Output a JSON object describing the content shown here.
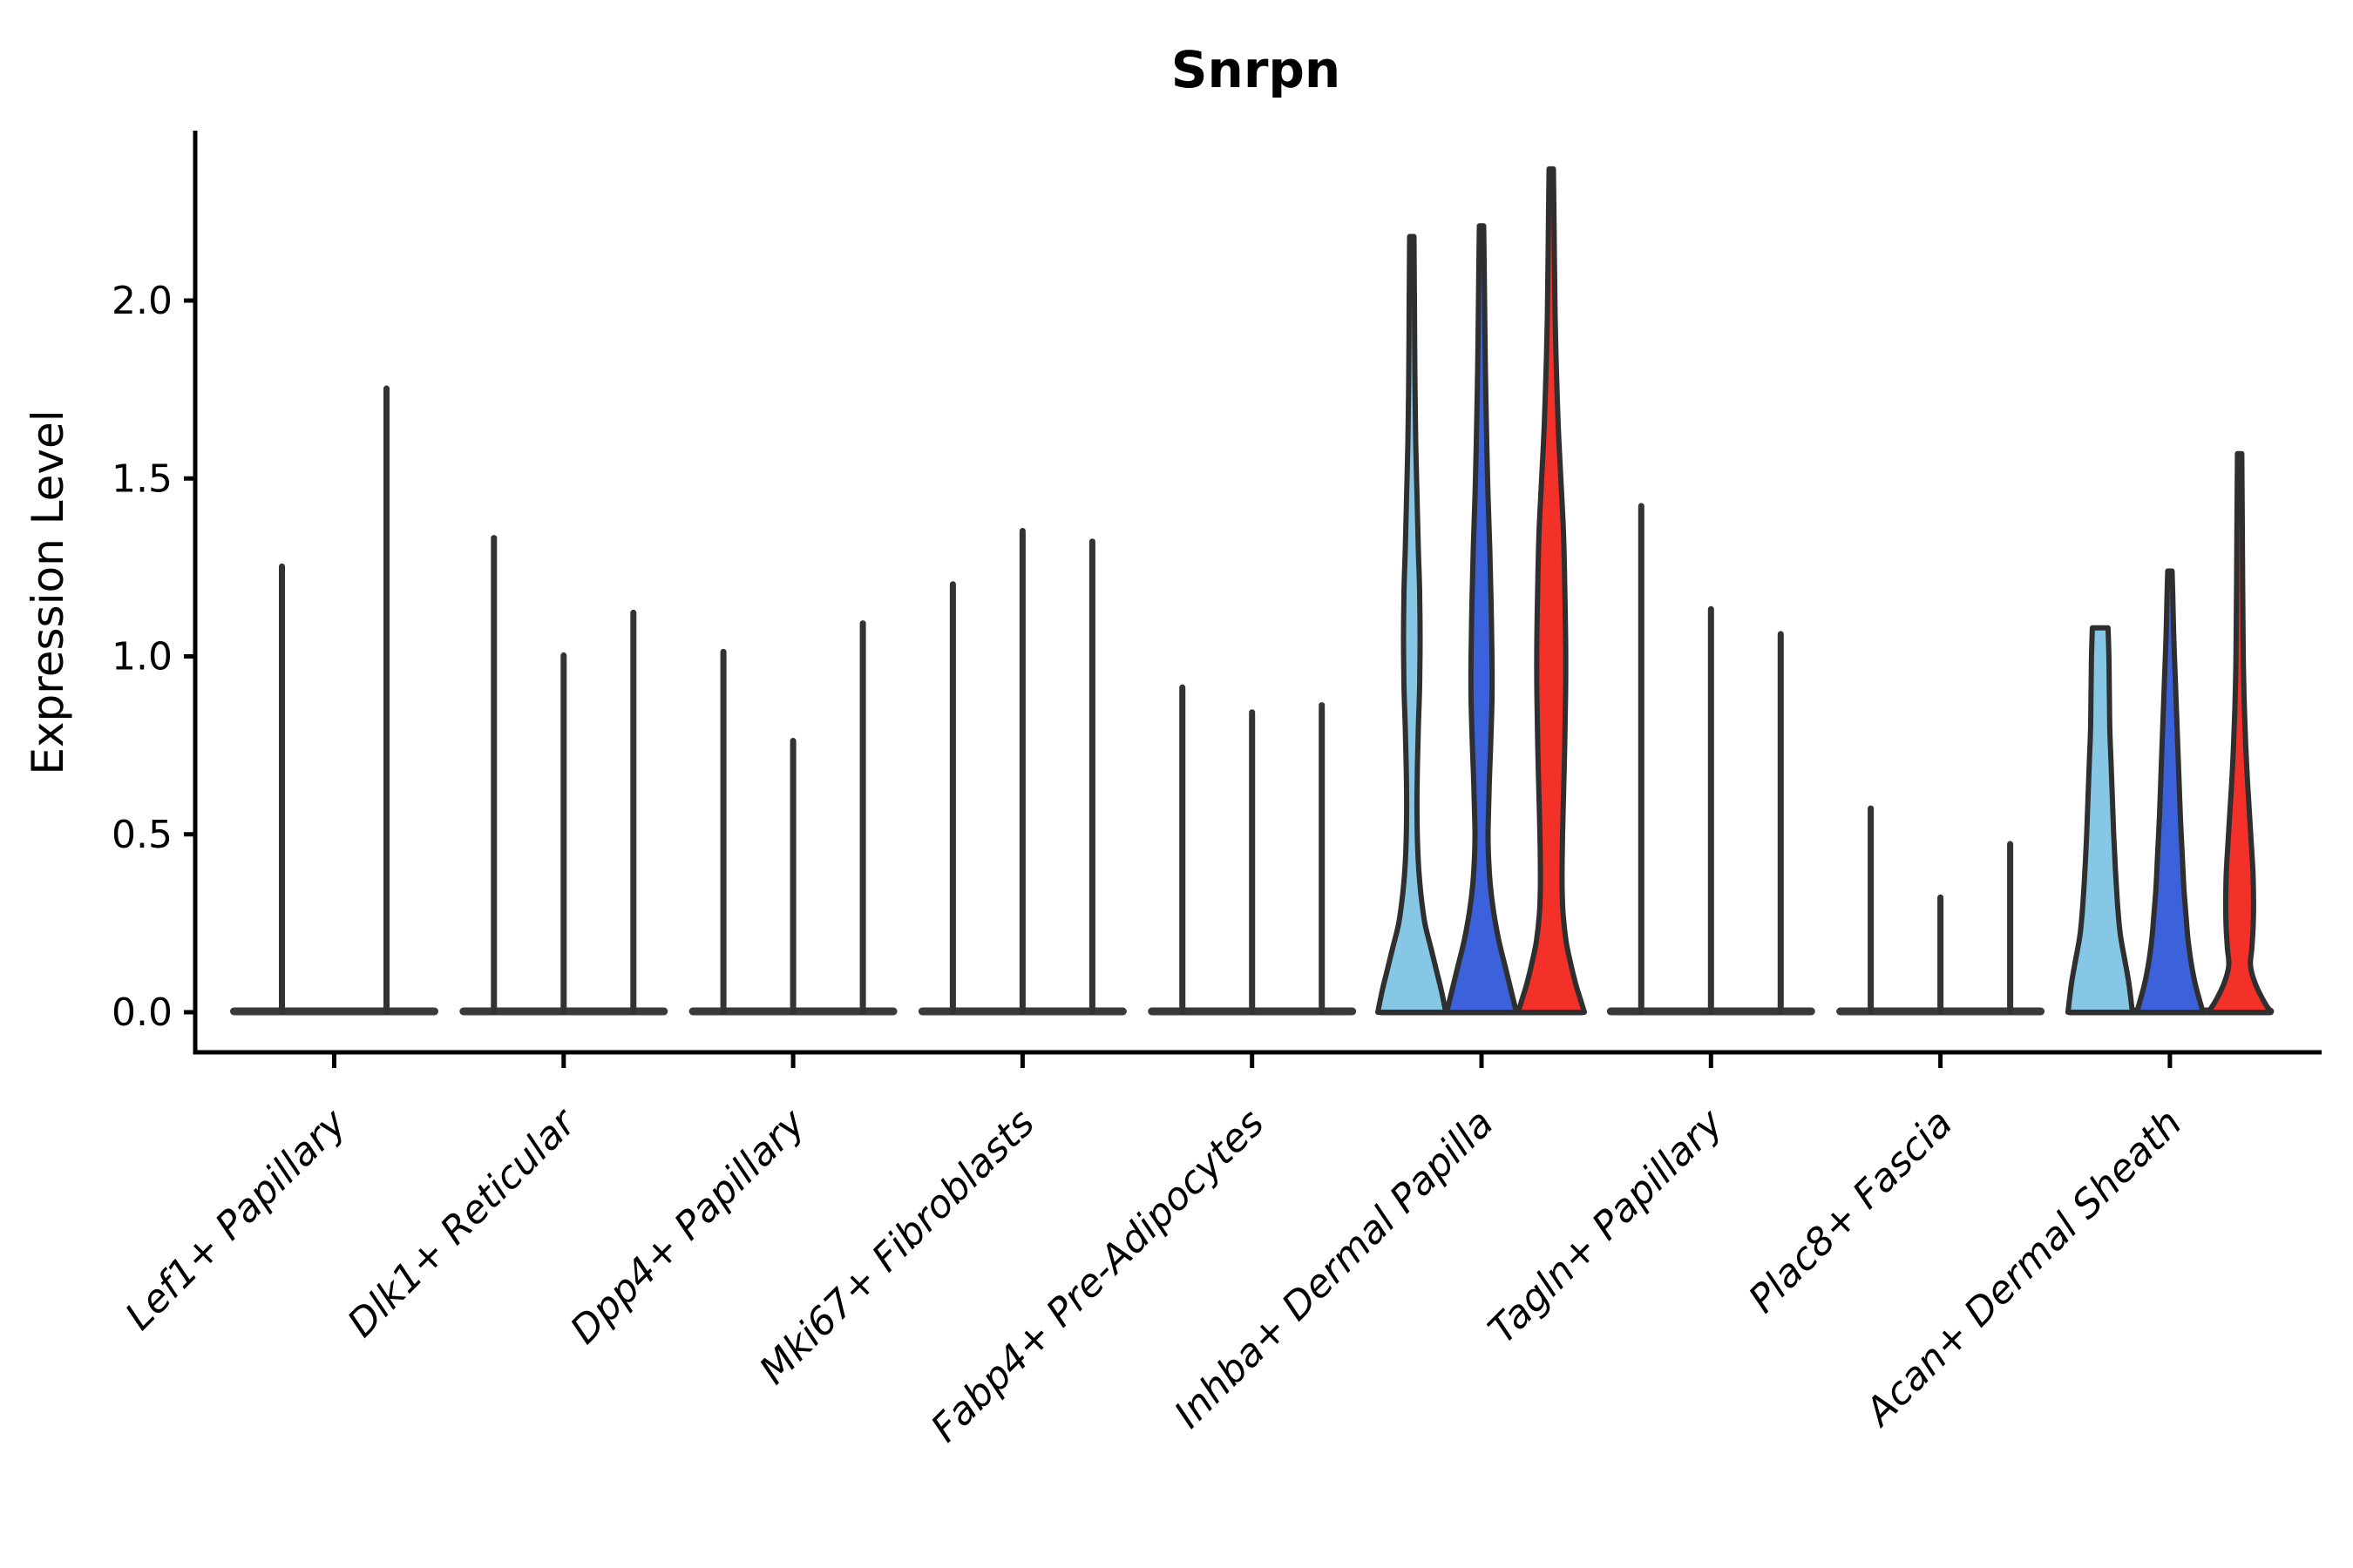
{
  "chart_data": {
    "type": "violin",
    "title": "Snrpn",
    "ylabel": "Expression Level",
    "xlabel": "",
    "ylim": [
      0,
      2.47
    ],
    "yticks": [
      {
        "value": 0.0,
        "label": "0.0"
      },
      {
        "value": 0.5,
        "label": "0.5"
      },
      {
        "value": 1.0,
        "label": "1.0"
      },
      {
        "value": 1.5,
        "label": "1.5"
      },
      {
        "value": 2.0,
        "label": "2.0"
      }
    ],
    "grid": false,
    "legend_position": "none",
    "colors": {
      "split_fills": [
        "#87C7E6",
        "#3B62DA",
        "#F33128"
      ],
      "outline": "#2F2F2F",
      "spike": "#333333",
      "zero_strip": "#3A3A3A"
    },
    "categories": [
      "Lef1+ Papillary",
      "Dlk1+ Reticular",
      "Dpp4+ Papillary",
      "Mki67+ Fibroblasts",
      "Fabp4+ Pre-Adipocytes",
      "Inhba+ Dermal Papilla",
      "Tagln+ Papillary",
      "Plac8+ Fascia",
      "Acan+ Dermal Sheath"
    ],
    "groups": [
      {
        "label": "Lef1+ Papillary",
        "violins": [
          {
            "kind": "spike",
            "max": 1.26
          },
          {
            "kind": "spike",
            "max": 1.76
          }
        ]
      },
      {
        "label": "Dlk1+ Reticular",
        "violins": [
          {
            "kind": "spike",
            "max": 1.34
          },
          {
            "kind": "spike",
            "max": 1.01
          },
          {
            "kind": "spike",
            "max": 1.13
          }
        ]
      },
      {
        "label": "Dpp4+ Papillary",
        "violins": [
          {
            "kind": "spike",
            "max": 1.02
          },
          {
            "kind": "spike",
            "max": 0.77
          },
          {
            "kind": "spike",
            "max": 1.1
          }
        ]
      },
      {
        "label": "Mki67+ Fibroblasts",
        "violins": [
          {
            "kind": "spike",
            "max": 1.21
          },
          {
            "kind": "spike",
            "max": 1.36
          },
          {
            "kind": "spike",
            "max": 1.33
          }
        ]
      },
      {
        "label": "Fabp4+ Pre-Adipocytes",
        "violins": [
          {
            "kind": "spike",
            "max": 0.92
          },
          {
            "kind": "spike",
            "max": 0.85
          },
          {
            "kind": "spike",
            "max": 0.87
          }
        ]
      },
      {
        "label": "Inhba+ Dermal Papilla",
        "violins": [
          {
            "kind": "violin",
            "max": 2.18,
            "fill_index": 0,
            "profile": [
              [
                2.18,
                2.5
              ],
              [
                2.0,
                3
              ],
              [
                1.8,
                3.5
              ],
              [
                1.6,
                4.5
              ],
              [
                1.45,
                6
              ],
              [
                1.3,
                7.5
              ],
              [
                1.18,
                9
              ],
              [
                1.05,
                9.5
              ],
              [
                0.92,
                9
              ],
              [
                0.8,
                7.5
              ],
              [
                0.7,
                6.5
              ],
              [
                0.62,
                6
              ],
              [
                0.55,
                6
              ],
              [
                0.48,
                6.5
              ],
              [
                0.4,
                8
              ],
              [
                0.32,
                11
              ],
              [
                0.25,
                15
              ],
              [
                0.18,
                22
              ],
              [
                0.12,
                28
              ],
              [
                0.06,
                34
              ],
              [
                0,
                39
              ]
            ]
          },
          {
            "kind": "violin",
            "max": 2.21,
            "fill_index": 1,
            "profile": [
              [
                2.21,
                2.5
              ],
              [
                2.0,
                3.5
              ],
              [
                1.8,
                4.5
              ],
              [
                1.6,
                6
              ],
              [
                1.45,
                7.5
              ],
              [
                1.3,
                9.5
              ],
              [
                1.15,
                11
              ],
              [
                1.0,
                12
              ],
              [
                0.88,
                12
              ],
              [
                0.75,
                10.5
              ],
              [
                0.65,
                9
              ],
              [
                0.56,
                8
              ],
              [
                0.5,
                7.5
              ],
              [
                0.44,
                8
              ],
              [
                0.36,
                10
              ],
              [
                0.28,
                14
              ],
              [
                0.2,
                20
              ],
              [
                0.13,
                27
              ],
              [
                0.07,
                33
              ],
              [
                0,
                40
              ]
            ]
          },
          {
            "kind": "violin",
            "max": 2.37,
            "fill_index": 2,
            "profile": [
              [
                2.37,
                2.5
              ],
              [
                2.15,
                3.5
              ],
              [
                1.95,
                4.5
              ],
              [
                1.8,
                6
              ],
              [
                1.65,
                8
              ],
              [
                1.5,
                11
              ],
              [
                1.35,
                14
              ],
              [
                1.2,
                15.5
              ],
              [
                1.05,
                16.5
              ],
              [
                0.9,
                16.5
              ],
              [
                0.75,
                15.5
              ],
              [
                0.6,
                14
              ],
              [
                0.5,
                13
              ],
              [
                0.42,
                12.5
              ],
              [
                0.35,
                12.5
              ],
              [
                0.28,
                13.5
              ],
              [
                0.2,
                17
              ],
              [
                0.14,
                22
              ],
              [
                0.08,
                28
              ],
              [
                0.04,
                33
              ],
              [
                0,
                38
              ]
            ]
          }
        ]
      },
      {
        "label": "Tagln+ Papillary",
        "violins": [
          {
            "kind": "spike",
            "max": 1.43
          },
          {
            "kind": "spike",
            "max": 1.14
          },
          {
            "kind": "spike",
            "max": 1.07
          }
        ]
      },
      {
        "label": "Plac8+ Fascia",
        "violins": [
          {
            "kind": "spike",
            "max": 0.58
          },
          {
            "kind": "spike",
            "max": 0.33
          },
          {
            "kind": "spike",
            "max": 0.48
          }
        ]
      },
      {
        "label": "Acan+ Dermal Sheath",
        "violins": [
          {
            "kind": "violin",
            "max": 1.08,
            "fill_index": 0,
            "profile": [
              [
                1.08,
                9
              ],
              [
                1.0,
                10
              ],
              [
                0.9,
                10.5
              ],
              [
                0.8,
                11
              ],
              [
                0.7,
                12.5
              ],
              [
                0.6,
                14
              ],
              [
                0.5,
                15.5
              ],
              [
                0.4,
                17.5
              ],
              [
                0.3,
                20
              ],
              [
                0.22,
                23
              ],
              [
                0.15,
                28
              ],
              [
                0.08,
                33
              ],
              [
                0,
                37
              ]
            ]
          },
          {
            "kind": "violin",
            "max": 1.24,
            "fill_index": 1,
            "profile": [
              [
                1.24,
                2.5
              ],
              [
                1.15,
                3.5
              ],
              [
                1.05,
                4.5
              ],
              [
                0.95,
                6
              ],
              [
                0.85,
                7.5
              ],
              [
                0.75,
                9
              ],
              [
                0.65,
                10.5
              ],
              [
                0.55,
                12
              ],
              [
                0.45,
                14
              ],
              [
                0.35,
                16
              ],
              [
                0.27,
                18.5
              ],
              [
                0.2,
                21
              ],
              [
                0.13,
                25
              ],
              [
                0.07,
                30
              ],
              [
                0,
                38
              ]
            ]
          },
          {
            "kind": "violin",
            "max": 1.57,
            "fill_index": 2,
            "profile": [
              [
                1.57,
                2.5
              ],
              [
                1.4,
                3
              ],
              [
                1.2,
                3.5
              ],
              [
                1.05,
                4
              ],
              [
                0.95,
                4.5
              ],
              [
                0.85,
                5.5
              ],
              [
                0.75,
                7
              ],
              [
                0.65,
                9
              ],
              [
                0.55,
                11.5
              ],
              [
                0.45,
                14
              ],
              [
                0.38,
                15.5
              ],
              [
                0.3,
                16
              ],
              [
                0.24,
                15.5
              ],
              [
                0.18,
                14
              ],
              [
                0.13,
                12.5
              ],
              [
                0.08,
                18
              ],
              [
                0.03,
                28
              ],
              [
                0,
                36
              ]
            ]
          }
        ]
      }
    ]
  }
}
